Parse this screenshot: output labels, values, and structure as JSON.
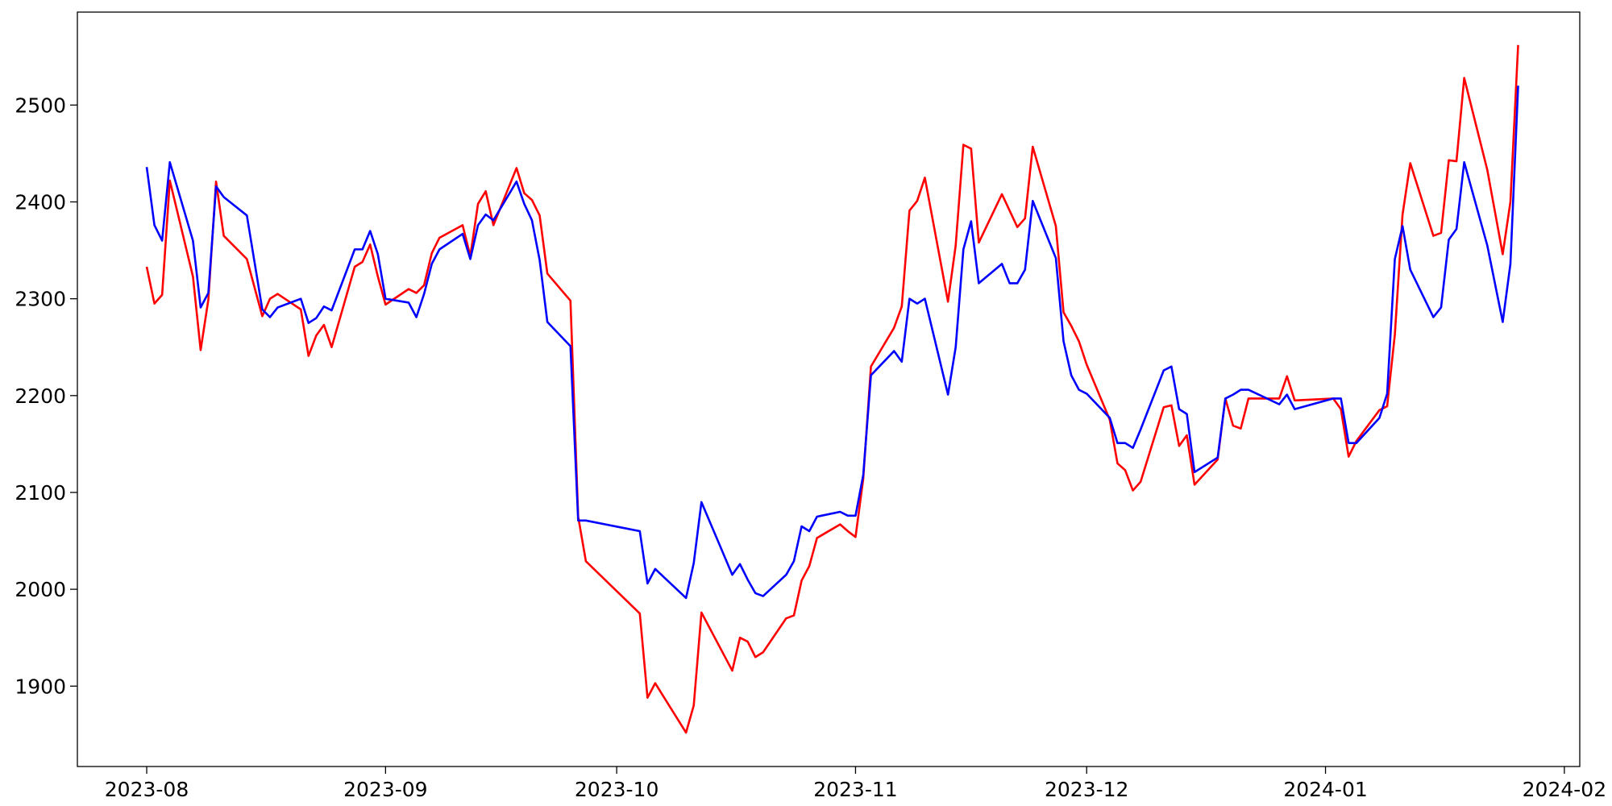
{
  "chart_data": {
    "type": "line",
    "x": [
      "2023-08-01",
      "2023-08-02",
      "2023-08-03",
      "2023-08-04",
      "2023-08-07",
      "2023-08-08",
      "2023-08-09",
      "2023-08-10",
      "2023-08-11",
      "2023-08-14",
      "2023-08-16",
      "2023-08-17",
      "2023-08-18",
      "2023-08-21",
      "2023-08-22",
      "2023-08-23",
      "2023-08-24",
      "2023-08-25",
      "2023-08-28",
      "2023-08-29",
      "2023-08-30",
      "2023-08-31",
      "2023-09-01",
      "2023-09-04",
      "2023-09-05",
      "2023-09-06",
      "2023-09-07",
      "2023-09-08",
      "2023-09-11",
      "2023-09-12",
      "2023-09-13",
      "2023-09-14",
      "2023-09-15",
      "2023-09-18",
      "2023-09-19",
      "2023-09-20",
      "2023-09-21",
      "2023-09-22",
      "2023-09-25",
      "2023-09-26",
      "2023-09-27",
      "2023-10-04",
      "2023-10-05",
      "2023-10-06",
      "2023-10-10",
      "2023-10-11",
      "2023-10-12",
      "2023-10-16",
      "2023-10-17",
      "2023-10-18",
      "2023-10-19",
      "2023-10-20",
      "2023-10-23",
      "2023-10-24",
      "2023-10-25",
      "2023-10-26",
      "2023-10-27",
      "2023-10-30",
      "2023-10-31",
      "2023-11-01",
      "2023-11-02",
      "2023-11-03",
      "2023-11-06",
      "2023-11-07",
      "2023-11-08",
      "2023-11-09",
      "2023-11-10",
      "2023-11-13",
      "2023-11-14",
      "2023-11-15",
      "2023-11-16",
      "2023-11-17",
      "2023-11-20",
      "2023-11-21",
      "2023-11-22",
      "2023-11-23",
      "2023-11-24",
      "2023-11-27",
      "2023-11-28",
      "2023-11-29",
      "2023-11-30",
      "2023-12-01",
      "2023-12-04",
      "2023-12-05",
      "2023-12-06",
      "2023-12-07",
      "2023-12-08",
      "2023-12-11",
      "2023-12-12",
      "2023-12-13",
      "2023-12-14",
      "2023-12-15",
      "2023-12-18",
      "2023-12-19",
      "2023-12-20",
      "2023-12-21",
      "2023-12-22",
      "2023-12-26",
      "2023-12-27",
      "2023-12-28",
      "2024-01-02",
      "2024-01-03",
      "2024-01-04",
      "2024-01-05",
      "2024-01-08",
      "2024-01-09",
      "2024-01-10",
      "2024-01-11",
      "2024-01-12",
      "2024-01-15",
      "2024-01-16",
      "2024-01-17",
      "2024-01-18",
      "2024-01-19",
      "2024-01-22",
      "2024-01-24",
      "2024-01-25",
      "2024-01-26"
    ],
    "series": [
      {
        "color": "#ff0000",
        "values": [
          2333,
          2295,
          2304,
          2422,
          2323,
          2247,
          2299,
          2421,
          2365,
          2341,
          2282,
          2300,
          2305,
          2289,
          2241,
          2262,
          2273,
          2250,
          2333,
          2338,
          2356,
          2323,
          2294,
          2310,
          2306,
          2314,
          2347,
          2363,
          2376,
          2344,
          2398,
          2411,
          2376,
          2435,
          2409,
          2402,
          2386,
          2326,
          2298,
          2075,
          2029,
          1975,
          1888,
          1903,
          1852,
          1880,
          1976,
          1916,
          1950,
          1946,
          1930,
          1935,
          1970,
          1973,
          2009,
          2024,
          2053,
          2067,
          2060,
          2054,
          2114,
          2230,
          2270,
          2292,
          2391,
          2401,
          2425,
          2297,
          2355,
          2459,
          2455,
          2358,
          2408,
          2391,
          2374,
          2383,
          2457,
          2375,
          2286,
          2272,
          2256,
          2232,
          2175,
          2130,
          2123,
          2102,
          2111,
          2188,
          2190,
          2148,
          2159,
          2108,
          2134,
          2197,
          2169,
          2166,
          2197,
          2197,
          2220,
          2195,
          2197,
          2186,
          2137,
          2153,
          2185,
          2189,
          2263,
          2387,
          2440,
          2365,
          2368,
          2443,
          2442,
          2528,
          2433,
          2346,
          2400,
          2562
        ]
      },
      {
        "color": "#0000ff",
        "values": [
          2436,
          2376,
          2360,
          2441,
          2360,
          2291,
          2306,
          2416,
          2405,
          2386,
          2289,
          2281,
          2291,
          2300,
          2275,
          2280,
          2292,
          2288,
          2351,
          2351,
          2370,
          2346,
          2300,
          2296,
          2281,
          2305,
          2336,
          2351,
          2367,
          2341,
          2376,
          2387,
          2381,
          2421,
          2398,
          2381,
          2340,
          2276,
          2251,
          2071,
          2071,
          2060,
          2006,
          2021,
          1991,
          2027,
          2090,
          2015,
          2026,
          2010,
          1996,
          1993,
          2015,
          2029,
          2065,
          2060,
          2075,
          2080,
          2076,
          2076,
          2118,
          2221,
          2246,
          2235,
          2300,
          2295,
          2300,
          2201,
          2250,
          2351,
          2380,
          2316,
          2336,
          2316,
          2316,
          2330,
          2401,
          2342,
          2256,
          2221,
          2206,
          2202,
          2177,
          2151,
          2151,
          2146,
          2165,
          2226,
          2230,
          2186,
          2181,
          2121,
          2136,
          2197,
          2201,
          2206,
          2206,
          2191,
          2201,
          2186,
          2197,
          2197,
          2151,
          2151,
          2177,
          2202,
          2341,
          2375,
          2330,
          2281,
          2291,
          2361,
          2372,
          2441,
          2355,
          2276,
          2336,
          2520
        ]
      }
    ],
    "xlim": [
      "2023-07-23",
      "2024-02-03"
    ],
    "xticks": [
      {
        "value": "2023-08-01",
        "label": "2023-08"
      },
      {
        "value": "2023-09-01",
        "label": "2023-09"
      },
      {
        "value": "2023-10-01",
        "label": "2023-10"
      },
      {
        "value": "2023-11-01",
        "label": "2023-11"
      },
      {
        "value": "2023-12-01",
        "label": "2023-12"
      },
      {
        "value": "2024-01-01",
        "label": "2024-01"
      },
      {
        "value": "2024-02-01",
        "label": "2024-02"
      }
    ],
    "ylim": [
      1817,
      2596
    ],
    "yticks": [
      1900,
      2000,
      2100,
      2200,
      2300,
      2400,
      2500
    ],
    "grid": false
  }
}
